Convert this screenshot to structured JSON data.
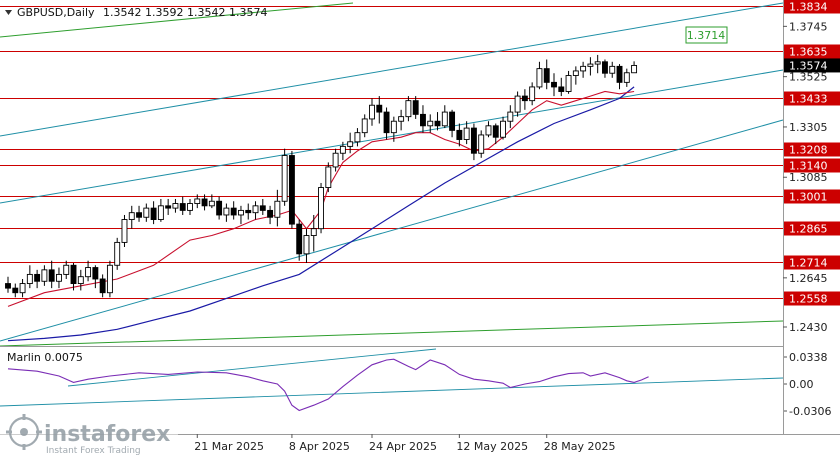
{
  "header": {
    "symbol": "GBPUSD,Daily",
    "ohlc": "1.3542 1.3592 1.3542 1.3574"
  },
  "indicator": {
    "label": "Marlin 0.0075",
    "ticks": [
      "0.0338",
      "0.00",
      "-0.0306"
    ],
    "values": [
      0.0338,
      0.0,
      -0.0306
    ]
  },
  "price_axis": {
    "ticks": [
      "1.3745",
      "1.3525",
      "1.3305",
      "1.3085",
      "1.2645",
      "1.2430"
    ],
    "tick_values": [
      1.3745,
      1.3525,
      1.3305,
      1.3085,
      1.2645,
      1.243
    ]
  },
  "levels": [
    {
      "label": "1.3834",
      "value": 1.3834
    },
    {
      "label": "1.3635",
      "value": 1.3635
    },
    {
      "label": "1.3433",
      "value": 1.3433
    },
    {
      "label": "1.3208",
      "value": 1.3208
    },
    {
      "label": "1.3140",
      "value": 1.314
    },
    {
      "label": "1.3001",
      "value": 1.3001
    },
    {
      "label": "1.2865",
      "value": 1.2865
    },
    {
      "label": "1.2714",
      "value": 1.2714
    },
    {
      "label": "1.2558",
      "value": 1.2558
    }
  ],
  "current_price": {
    "label": "1.3574",
    "value": 1.3574
  },
  "target_box": {
    "label": "1.3714",
    "value": 1.3714
  },
  "date_axis": [
    "21 Mar 2025",
    "8 Apr 2025",
    "24 Apr 2025",
    "12 May 2025",
    "28 May 2025"
  ],
  "watermark": {
    "brand": "instaforex",
    "tagline": "Instant Forex Trading"
  },
  "colors": {
    "level": "#cc0000",
    "channel": "#1f8fa6",
    "green_line": "#2e9e2e",
    "ma_fast": "#c8102e",
    "ma_slow": "#1a1aa6",
    "oscillator": "#7a2db5",
    "panel_border": "#c8c8c8"
  },
  "chart_data": {
    "type": "candlestick",
    "title": "GBPUSD,Daily",
    "ylim": [
      1.2345,
      1.386
    ],
    "candles": [
      [
        1.262,
        1.265,
        1.258,
        1.26
      ],
      [
        1.26,
        1.262,
        1.256,
        1.258
      ],
      [
        1.258,
        1.264,
        1.256,
        1.262
      ],
      [
        1.262,
        1.27,
        1.26,
        1.266
      ],
      [
        1.266,
        1.268,
        1.26,
        1.263
      ],
      [
        1.263,
        1.27,
        1.261,
        1.268
      ],
      [
        1.268,
        1.272,
        1.26,
        1.263
      ],
      [
        1.263,
        1.269,
        1.26,
        1.266
      ],
      [
        1.266,
        1.272,
        1.264,
        1.27
      ],
      [
        1.27,
        1.271,
        1.259,
        1.262
      ],
      [
        1.262,
        1.268,
        1.259,
        1.265
      ],
      [
        1.265,
        1.272,
        1.263,
        1.269
      ],
      [
        1.269,
        1.27,
        1.26,
        1.264
      ],
      [
        1.264,
        1.266,
        1.256,
        1.258
      ],
      [
        1.258,
        1.272,
        1.256,
        1.27
      ],
      [
        1.27,
        1.282,
        1.268,
        1.28
      ],
      [
        1.28,
        1.292,
        1.278,
        1.29
      ],
      [
        1.29,
        1.296,
        1.286,
        1.293
      ],
      [
        1.293,
        1.296,
        1.289,
        1.291
      ],
      [
        1.291,
        1.297,
        1.289,
        1.295
      ],
      [
        1.295,
        1.298,
        1.288,
        1.29
      ],
      [
        1.29,
        1.299,
        1.289,
        1.296
      ],
      [
        1.296,
        1.299,
        1.292,
        1.295
      ],
      [
        1.295,
        1.299,
        1.293,
        1.297
      ],
      [
        1.297,
        1.3,
        1.292,
        1.294
      ],
      [
        1.294,
        1.299,
        1.292,
        1.297
      ],
      [
        1.297,
        1.301,
        1.295,
        1.299
      ],
      [
        1.299,
        1.301,
        1.294,
        1.296
      ],
      [
        1.296,
        1.301,
        1.295,
        1.298
      ],
      [
        1.298,
        1.3,
        1.29,
        1.292
      ],
      [
        1.292,
        1.297,
        1.289,
        1.295
      ],
      [
        1.295,
        1.298,
        1.29,
        1.292
      ],
      [
        1.292,
        1.296,
        1.288,
        1.294
      ],
      [
        1.294,
        1.297,
        1.29,
        1.293
      ],
      [
        1.293,
        1.298,
        1.29,
        1.296
      ],
      [
        1.296,
        1.299,
        1.292,
        1.294
      ],
      [
        1.294,
        1.296,
        1.288,
        1.291
      ],
      [
        1.291,
        1.303,
        1.287,
        1.298
      ],
      [
        1.298,
        1.321,
        1.296,
        1.318
      ],
      [
        1.318,
        1.32,
        1.286,
        1.288
      ],
      [
        1.288,
        1.29,
        1.272,
        1.275
      ],
      [
        1.275,
        1.286,
        1.271,
        1.283
      ],
      [
        1.283,
        1.292,
        1.276,
        1.286
      ],
      [
        1.286,
        1.306,
        1.284,
        1.304
      ],
      [
        1.304,
        1.315,
        1.302,
        1.313
      ],
      [
        1.313,
        1.321,
        1.311,
        1.319
      ],
      [
        1.319,
        1.324,
        1.316,
        1.322
      ],
      [
        1.322,
        1.328,
        1.319,
        1.324
      ],
      [
        1.324,
        1.33,
        1.322,
        1.328
      ],
      [
        1.328,
        1.336,
        1.326,
        1.334
      ],
      [
        1.334,
        1.343,
        1.331,
        1.34
      ],
      [
        1.34,
        1.344,
        1.332,
        1.337
      ],
      [
        1.337,
        1.339,
        1.325,
        1.328
      ],
      [
        1.328,
        1.335,
        1.324,
        1.333
      ],
      [
        1.333,
        1.338,
        1.329,
        1.335
      ],
      [
        1.335,
        1.344,
        1.333,
        1.342
      ],
      [
        1.342,
        1.344,
        1.334,
        1.336
      ],
      [
        1.336,
        1.34,
        1.328,
        1.331
      ],
      [
        1.331,
        1.336,
        1.328,
        1.333
      ],
      [
        1.333,
        1.337,
        1.329,
        1.331
      ],
      [
        1.331,
        1.34,
        1.33,
        1.337
      ],
      [
        1.337,
        1.338,
        1.326,
        1.329
      ],
      [
        1.329,
        1.332,
        1.322,
        1.325
      ],
      [
        1.325,
        1.333,
        1.323,
        1.33
      ],
      [
        1.33,
        1.332,
        1.316,
        1.319
      ],
      [
        1.319,
        1.329,
        1.317,
        1.327
      ],
      [
        1.327,
        1.333,
        1.326,
        1.331
      ],
      [
        1.331,
        1.332,
        1.323,
        1.326
      ],
      [
        1.326,
        1.335,
        1.325,
        1.333
      ],
      [
        1.333,
        1.34,
        1.33,
        1.337
      ],
      [
        1.337,
        1.346,
        1.335,
        1.344
      ],
      [
        1.344,
        1.347,
        1.338,
        1.342
      ],
      [
        1.342,
        1.35,
        1.34,
        1.348
      ],
      [
        1.348,
        1.359,
        1.347,
        1.356
      ],
      [
        1.356,
        1.36,
        1.347,
        1.35
      ],
      [
        1.35,
        1.354,
        1.344,
        1.348
      ],
      [
        1.348,
        1.352,
        1.344,
        1.346
      ],
      [
        1.346,
        1.355,
        1.345,
        1.353
      ],
      [
        1.353,
        1.357,
        1.349,
        1.355
      ],
      [
        1.355,
        1.359,
        1.352,
        1.357
      ],
      [
        1.357,
        1.361,
        1.353,
        1.358
      ],
      [
        1.358,
        1.362,
        1.354,
        1.359
      ],
      [
        1.359,
        1.36,
        1.352,
        1.354
      ],
      [
        1.354,
        1.359,
        1.352,
        1.357
      ],
      [
        1.357,
        1.358,
        1.347,
        1.35
      ],
      [
        1.35,
        1.356,
        1.348,
        1.3542
      ],
      [
        1.3542,
        1.3592,
        1.3542,
        1.3574
      ]
    ],
    "ma_fast": [
      [
        0,
        1.252
      ],
      [
        5,
        1.258
      ],
      [
        10,
        1.261
      ],
      [
        15,
        1.264
      ],
      [
        20,
        1.27
      ],
      [
        25,
        1.281
      ],
      [
        28,
        1.283
      ],
      [
        31,
        1.286
      ],
      [
        34,
        1.29
      ],
      [
        37,
        1.292
      ],
      [
        39,
        1.294
      ],
      [
        40,
        1.29
      ],
      [
        41,
        1.286
      ],
      [
        43,
        1.294
      ],
      [
        44,
        1.304
      ],
      [
        46,
        1.315
      ],
      [
        48,
        1.32
      ],
      [
        50,
        1.324
      ],
      [
        52,
        1.325
      ],
      [
        54,
        1.326
      ],
      [
        56,
        1.328
      ],
      [
        58,
        1.328
      ],
      [
        60,
        1.325
      ],
      [
        62,
        1.323
      ],
      [
        64,
        1.32
      ],
      [
        66,
        1.321
      ],
      [
        68,
        1.326
      ],
      [
        70,
        1.332
      ],
      [
        72,
        1.338
      ],
      [
        74,
        1.342
      ],
      [
        76,
        1.34
      ],
      [
        78,
        1.342
      ],
      [
        80,
        1.344
      ],
      [
        82,
        1.346
      ],
      [
        84,
        1.345
      ],
      [
        86,
        1.346
      ]
    ],
    "ma_slow": [
      [
        0,
        1.237
      ],
      [
        5,
        1.238
      ],
      [
        10,
        1.2395
      ],
      [
        15,
        1.242
      ],
      [
        20,
        1.246
      ],
      [
        25,
        1.25
      ],
      [
        30,
        1.2555
      ],
      [
        35,
        1.261
      ],
      [
        40,
        1.266
      ],
      [
        45,
        1.276
      ],
      [
        50,
        1.286
      ],
      [
        55,
        1.296
      ],
      [
        60,
        1.306
      ],
      [
        65,
        1.315
      ],
      [
        70,
        1.324
      ],
      [
        75,
        1.332
      ],
      [
        80,
        1.338
      ],
      [
        84,
        1.343
      ],
      [
        86,
        1.348
      ]
    ],
    "oscillator": [
      [
        0,
        0.019
      ],
      [
        4,
        0.016
      ],
      [
        7,
        0.01
      ],
      [
        9,
        0.002
      ],
      [
        11,
        0.006
      ],
      [
        14,
        0.01
      ],
      [
        18,
        0.014
      ],
      [
        22,
        0.012
      ],
      [
        26,
        0.015
      ],
      [
        30,
        0.014
      ],
      [
        33,
        0.009
      ],
      [
        35,
        0.004
      ],
      [
        37,
        0.0
      ],
      [
        38,
        -0.008
      ],
      [
        39,
        -0.024
      ],
      [
        40,
        -0.03
      ],
      [
        42,
        -0.024
      ],
      [
        44,
        -0.017
      ],
      [
        46,
        -0.003
      ],
      [
        48,
        0.011
      ],
      [
        50,
        0.024
      ],
      [
        52,
        0.03
      ],
      [
        53,
        0.031
      ],
      [
        55,
        0.022
      ],
      [
        56,
        0.018
      ],
      [
        58,
        0.03
      ],
      [
        60,
        0.024
      ],
      [
        62,
        0.012
      ],
      [
        64,
        0.006
      ],
      [
        66,
        0.004
      ],
      [
        68,
        0.001
      ],
      [
        69,
        -0.004
      ],
      [
        71,
        0.0
      ],
      [
        73,
        0.003
      ],
      [
        75,
        0.009
      ],
      [
        77,
        0.013
      ],
      [
        79,
        0.014
      ],
      [
        80,
        0.01
      ],
      [
        82,
        0.014
      ],
      [
        84,
        0.008
      ],
      [
        85,
        0.004
      ],
      [
        86,
        0.002
      ],
      [
        87,
        0.005
      ],
      [
        88,
        0.009
      ]
    ]
  }
}
